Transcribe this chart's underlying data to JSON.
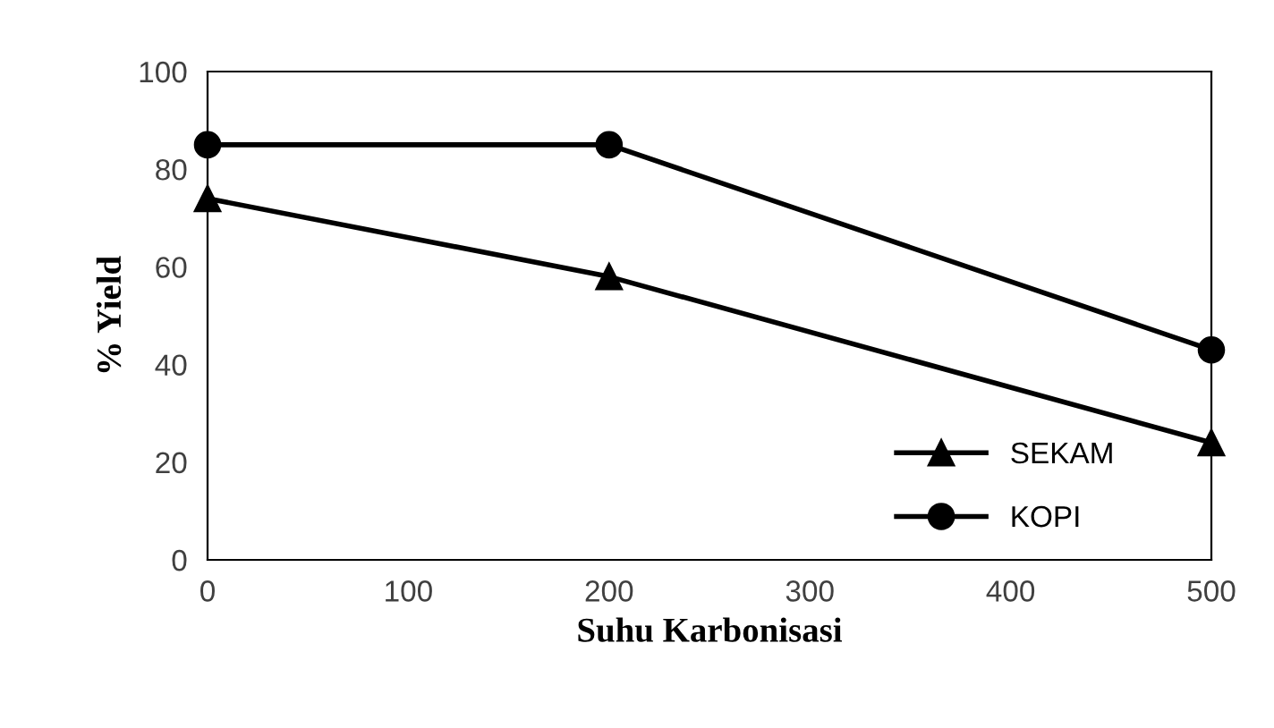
{
  "chart_data": {
    "type": "line",
    "xlabel": "Suhu Karbonisasi",
    "ylabel": "% Yield",
    "x": [
      0,
      200,
      500
    ],
    "series": [
      {
        "name": "SEKAM",
        "color": "#000000",
        "marker": "triangle",
        "values": [
          74,
          58,
          24
        ]
      },
      {
        "name": "KOPI",
        "color": "#000000",
        "marker": "circle",
        "values": [
          85,
          85,
          43
        ]
      }
    ],
    "xlim": [
      0,
      500
    ],
    "xticks": [
      0,
      100,
      200,
      300,
      400,
      500
    ],
    "ylim": [
      0,
      100
    ],
    "yticks": [
      0,
      20,
      40,
      60,
      80,
      100
    ],
    "grid": false,
    "legend": "bottom right",
    "line_style": "solid"
  }
}
